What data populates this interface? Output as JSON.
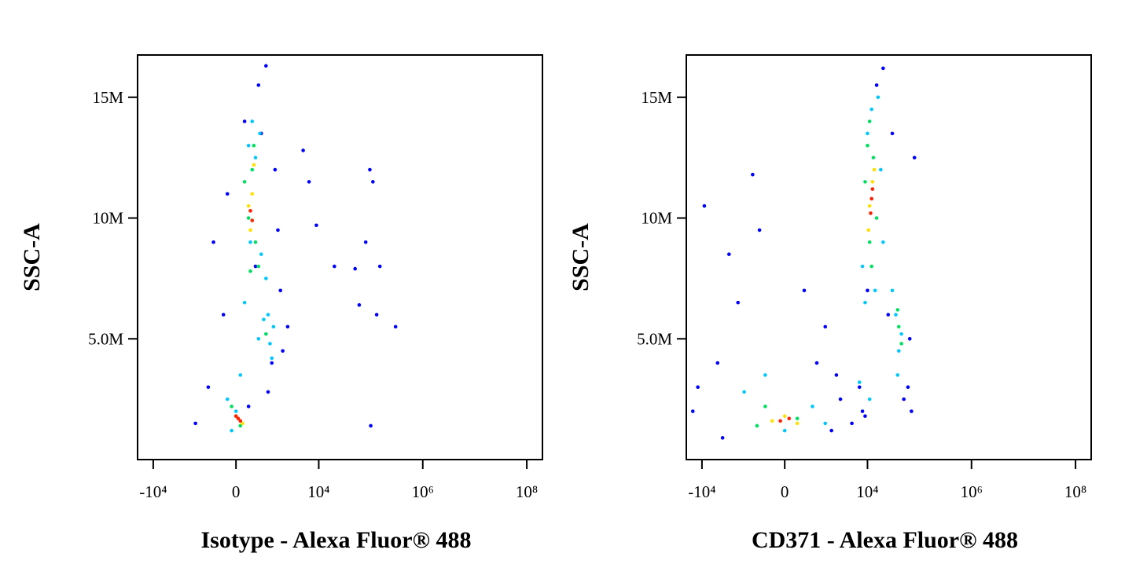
{
  "chart_data": [
    {
      "type": "scatter",
      "x_label": "Isotype - Alexa Fluor® 488",
      "y_label": "SSC-A",
      "xscale": "biexponential",
      "xlim": [
        -20000,
        200000000
      ],
      "ylim": [
        0,
        16750000
      ],
      "xticks": [
        {
          "value": -10000,
          "label": "-10⁴"
        },
        0,
        {
          "value": 10000,
          "label": "10⁴"
        },
        {
          "value": 1000000,
          "label": "10⁶"
        },
        {
          "value": 100000000,
          "label": "10⁸"
        }
      ],
      "yticks": [
        {
          "value": 5000000,
          "label": "5.0M"
        },
        {
          "value": 10000000,
          "label": "10M"
        },
        {
          "value": 15000000,
          "label": "15M"
        }
      ],
      "series": [
        {
          "color": "#0000ff",
          "x": [
            -1500,
            -800,
            -300,
            200,
            600,
            900,
            1400,
            1800,
            2500,
            -600,
            1200,
            300,
            700,
            1600,
            2000,
            -200,
            500,
            1000,
            5000,
            6500,
            9000,
            20000,
            50000,
            96000,
            110000,
            150000,
            80000,
            130000,
            60000,
            300000,
            100000
          ],
          "y": [
            1500000,
            3000000,
            6000000,
            14000000,
            15500000,
            16300000,
            12000000,
            7000000,
            5500000,
            9000000,
            4000000,
            2200000,
            13500000,
            9500000,
            4500000,
            11000000,
            8000000,
            2800000,
            12800000,
            11500000,
            9700000,
            8000000,
            7900000,
            12000000,
            11500000,
            8000000,
            9000000,
            6000000,
            6400000,
            5500000,
            1400000
          ]
        },
        {
          "color": "#00c8ff",
          "x": [
            -200,
            100,
            300,
            500,
            700,
            900,
            400,
            200,
            600,
            800,
            1100,
            1300,
            -100,
            0,
            350,
            650,
            1000,
            1200
          ],
          "y": [
            2500000,
            3500000,
            13000000,
            12500000,
            8500000,
            7500000,
            14000000,
            6500000,
            5000000,
            5800000,
            4800000,
            5500000,
            1200000,
            2000000,
            9000000,
            13500000,
            6000000,
            4200000
          ]
        },
        {
          "color": "#00e060",
          "x": [
            200,
            400,
            500,
            300,
            600,
            450,
            350,
            900,
            -100,
            100
          ],
          "y": [
            11500000,
            12000000,
            9000000,
            10000000,
            8000000,
            13000000,
            7800000,
            5200000,
            2200000,
            1400000
          ]
        },
        {
          "color": "#ffe000",
          "x": [
            300,
            400,
            350,
            450,
            0,
            150
          ],
          "y": [
            10500000,
            11000000,
            9500000,
            12200000,
            1800000,
            1500000
          ]
        },
        {
          "color": "#ff2000",
          "x": [
            350,
            400,
            50,
            100,
            0
          ],
          "y": [
            10300000,
            9900000,
            1700000,
            1600000,
            1800000
          ]
        }
      ]
    },
    {
      "type": "scatter",
      "x_label": "CD371 - Alexa Fluor® 488",
      "y_label": "SSC-A",
      "xscale": "biexponential",
      "xlim": [
        -20000,
        200000000
      ],
      "ylim": [
        0,
        16750000
      ],
      "xticks": [
        {
          "value": -10000,
          "label": "-10⁴"
        },
        0,
        {
          "value": 10000,
          "label": "10⁴"
        },
        {
          "value": 1000000,
          "label": "10⁶"
        },
        {
          "value": 100000000,
          "label": "10⁸"
        }
      ],
      "yticks": [
        {
          "value": 5000000,
          "label": "5.0M"
        },
        {
          "value": 10000000,
          "label": "10M"
        },
        {
          "value": 15000000,
          "label": "15M"
        }
      ],
      "series": [
        {
          "color": "#0000ff",
          "x": [
            -15000,
            -9000,
            -5000,
            -3000,
            -1000,
            500,
            1500,
            2500,
            -2000,
            -700,
            3000,
            5000,
            7000,
            8000,
            10000,
            15000,
            20000,
            30000,
            60000,
            80000,
            70000,
            -12000,
            1000,
            2000,
            -4000,
            9000,
            25000,
            50000,
            65000
          ],
          "y": [
            2000000,
            10500000,
            4000000,
            8500000,
            11800000,
            7000000,
            5500000,
            3500000,
            6500000,
            9500000,
            2500000,
            1500000,
            3000000,
            2000000,
            7000000,
            15500000,
            16200000,
            13500000,
            3000000,
            12500000,
            2000000,
            3000000,
            4000000,
            1200000,
            900000,
            1800000,
            6000000,
            2500000,
            5000000
          ]
        },
        {
          "color": "#00c8ff",
          "x": [
            -1500,
            -500,
            0,
            800,
            1500,
            8000,
            10000,
            12000,
            14000,
            18000,
            9000,
            20000,
            35000,
            40000,
            45000,
            38000,
            30000,
            11000,
            7000,
            16000
          ],
          "y": [
            2800000,
            3500000,
            1200000,
            2200000,
            1500000,
            8000000,
            13500000,
            14500000,
            7000000,
            12000000,
            6500000,
            9000000,
            6000000,
            4500000,
            5200000,
            3500000,
            7000000,
            2500000,
            3200000,
            15000000
          ]
        },
        {
          "color": "#00e060",
          "x": [
            -500,
            300,
            -800,
            9000,
            11000,
            13000,
            15000,
            12000,
            10000,
            40000,
            45000,
            38000,
            11000
          ],
          "y": [
            2200000,
            1700000,
            1400000,
            11500000,
            9000000,
            12500000,
            10000000,
            8000000,
            13000000,
            5500000,
            4800000,
            6200000,
            14000000
          ]
        },
        {
          "color": "#ffe000",
          "x": [
            0,
            -300,
            300,
            11000,
            12500,
            10500,
            13500
          ],
          "y": [
            1800000,
            1600000,
            1500000,
            10500000,
            11500000,
            9500000,
            12000000
          ]
        },
        {
          "color": "#ff2000",
          "x": [
            100,
            -100,
            12000,
            11500,
            12500
          ],
          "y": [
            1700000,
            1600000,
            10800000,
            10200000,
            11200000
          ]
        }
      ]
    }
  ]
}
